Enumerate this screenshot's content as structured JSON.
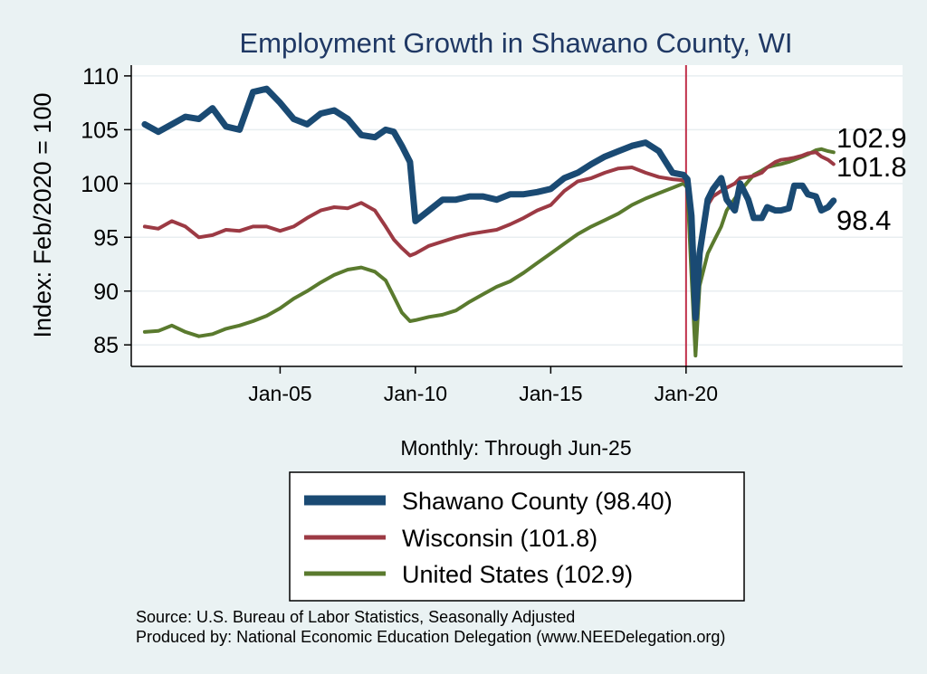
{
  "chart_data": {
    "type": "line",
    "title": "Employment Growth in Shawano  County, WI",
    "ylabel": "Index: Feb/2020 = 100",
    "xlabel": "Monthly: Through Jun-25",
    "ylim": [
      83,
      111
    ],
    "xlim": [
      1999.5,
      2028
    ],
    "yticks": [
      85,
      90,
      95,
      100,
      105,
      110
    ],
    "xticks": [
      {
        "value": 2005,
        "label": "Jan-05"
      },
      {
        "value": 2010,
        "label": "Jan-10"
      },
      {
        "value": 2015,
        "label": "Jan-15"
      },
      {
        "value": 2020,
        "label": "Jan-20"
      }
    ],
    "reference_line": {
      "x": 2020.0,
      "color": "#c0304a"
    },
    "series": [
      {
        "name": "Shawano County",
        "legend": "Shawano  County (98.40)",
        "color": "#1a4a73",
        "width": 7,
        "end_label": "98.4",
        "x": [
          2000.0,
          2000.5,
          2001.0,
          2001.5,
          2002.0,
          2002.5,
          2003.0,
          2003.5,
          2004.0,
          2004.5,
          2005.0,
          2005.5,
          2006.0,
          2006.5,
          2007.0,
          2007.5,
          2008.0,
          2008.5,
          2008.9,
          2009.2,
          2009.5,
          2009.8,
          2010.0,
          2010.5,
          2011.0,
          2011.5,
          2012.0,
          2012.5,
          2013.0,
          2013.5,
          2014.0,
          2014.5,
          2015.0,
          2015.5,
          2016.0,
          2016.5,
          2017.0,
          2017.5,
          2018.0,
          2018.5,
          2019.0,
          2019.5,
          2019.9,
          2020.05,
          2020.2,
          2020.35,
          2020.5,
          2020.8,
          2021.0,
          2021.3,
          2021.5,
          2021.8,
          2022.0,
          2022.3,
          2022.5,
          2022.8,
          2023.0,
          2023.3,
          2023.5,
          2023.8,
          2024.0,
          2024.3,
          2024.5,
          2024.8,
          2025.0,
          2025.25,
          2025.45
        ],
        "values": [
          105.5,
          104.8,
          105.5,
          106.2,
          106.0,
          107.0,
          105.3,
          105.0,
          108.5,
          108.8,
          107.5,
          106.0,
          105.5,
          106.5,
          106.8,
          106.0,
          104.5,
          104.3,
          105.0,
          104.8,
          103.5,
          102.0,
          96.5,
          97.5,
          98.5,
          98.5,
          98.8,
          98.8,
          98.5,
          99.0,
          99.0,
          99.2,
          99.5,
          100.5,
          101.0,
          101.8,
          102.5,
          103.0,
          103.5,
          103.8,
          103.0,
          101.0,
          100.8,
          100.4,
          97.0,
          87.5,
          93.5,
          98.5,
          99.5,
          100.5,
          98.5,
          97.5,
          100.0,
          98.5,
          96.8,
          96.8,
          97.8,
          97.5,
          97.5,
          97.7,
          99.8,
          99.8,
          99.0,
          98.8,
          97.5,
          97.8,
          98.4
        ]
      },
      {
        "name": "Wisconsin",
        "legend": "Wisconsin (101.8)",
        "color": "#9c3a44",
        "width": 4,
        "end_label": "101.8",
        "x": [
          2000.0,
          2000.5,
          2001.0,
          2001.5,
          2002.0,
          2002.5,
          2003.0,
          2003.5,
          2004.0,
          2004.5,
          2005.0,
          2005.5,
          2006.0,
          2006.5,
          2007.0,
          2007.5,
          2008.0,
          2008.5,
          2008.9,
          2009.2,
          2009.5,
          2009.8,
          2010.0,
          2010.5,
          2011.0,
          2011.5,
          2012.0,
          2012.5,
          2013.0,
          2013.5,
          2014.0,
          2014.5,
          2015.0,
          2015.5,
          2016.0,
          2016.5,
          2017.0,
          2017.5,
          2018.0,
          2018.5,
          2019.0,
          2019.5,
          2019.9,
          2020.05,
          2020.2,
          2020.35,
          2020.5,
          2020.8,
          2021.0,
          2021.3,
          2021.5,
          2021.8,
          2022.0,
          2022.3,
          2022.5,
          2022.8,
          2023.0,
          2023.3,
          2023.5,
          2023.8,
          2024.0,
          2024.3,
          2024.5,
          2024.8,
          2025.0,
          2025.25,
          2025.45
        ],
        "values": [
          96.0,
          95.8,
          96.5,
          96.0,
          95.0,
          95.2,
          95.7,
          95.6,
          96.0,
          96.0,
          95.6,
          96.0,
          96.8,
          97.5,
          97.8,
          97.7,
          98.2,
          97.5,
          96.0,
          94.8,
          94.0,
          93.3,
          93.5,
          94.2,
          94.6,
          95.0,
          95.3,
          95.5,
          95.7,
          96.2,
          96.8,
          97.5,
          98.0,
          99.3,
          100.2,
          100.5,
          101.0,
          101.4,
          101.5,
          101.0,
          100.6,
          100.4,
          100.3,
          100.0,
          96.0,
          89.0,
          94.0,
          98.0,
          98.8,
          99.3,
          99.6,
          100.0,
          100.5,
          100.6,
          100.7,
          101.0,
          101.5,
          102.0,
          102.2,
          102.3,
          102.4,
          102.6,
          102.8,
          102.9,
          102.5,
          102.2,
          101.8
        ]
      },
      {
        "name": "United States",
        "legend": "United States (102.9)",
        "color": "#5a7a2e",
        "width": 4,
        "end_label": "102.9",
        "x": [
          2000.0,
          2000.5,
          2001.0,
          2001.5,
          2002.0,
          2002.5,
          2003.0,
          2003.5,
          2004.0,
          2004.5,
          2005.0,
          2005.5,
          2006.0,
          2006.5,
          2007.0,
          2007.5,
          2008.0,
          2008.5,
          2008.9,
          2009.2,
          2009.5,
          2009.8,
          2010.0,
          2010.5,
          2011.0,
          2011.5,
          2012.0,
          2012.5,
          2013.0,
          2013.5,
          2014.0,
          2014.5,
          2015.0,
          2015.5,
          2016.0,
          2016.5,
          2017.0,
          2017.5,
          2018.0,
          2018.5,
          2019.0,
          2019.5,
          2019.9,
          2020.05,
          2020.2,
          2020.35,
          2020.5,
          2020.8,
          2021.0,
          2021.3,
          2021.5,
          2021.8,
          2022.0,
          2022.3,
          2022.5,
          2022.8,
          2023.0,
          2023.3,
          2023.5,
          2023.8,
          2024.0,
          2024.3,
          2024.5,
          2024.8,
          2025.0,
          2025.25,
          2025.45
        ],
        "values": [
          86.2,
          86.3,
          86.8,
          86.2,
          85.8,
          86.0,
          86.5,
          86.8,
          87.2,
          87.7,
          88.4,
          89.3,
          90.0,
          90.8,
          91.5,
          92.0,
          92.2,
          91.8,
          91.0,
          89.5,
          88.0,
          87.2,
          87.3,
          87.6,
          87.8,
          88.2,
          89.0,
          89.7,
          90.4,
          90.9,
          91.7,
          92.6,
          93.5,
          94.4,
          95.3,
          96.0,
          96.6,
          97.2,
          98.0,
          98.6,
          99.1,
          99.6,
          100.0,
          99.6,
          91.5,
          84.0,
          90.5,
          93.5,
          94.5,
          96.0,
          97.5,
          98.6,
          99.3,
          100.2,
          100.8,
          101.2,
          101.5,
          101.7,
          101.8,
          102.0,
          102.2,
          102.5,
          102.7,
          103.1,
          103.2,
          103.0,
          102.9
        ]
      }
    ],
    "legend_placement": "bottom-center"
  },
  "footer": {
    "source": "Source: U.S. Bureau of Labor Statistics, Seasonally Adjusted",
    "produced": "Produced by: National Economic Education Delegation (www.NEEDelegation.org)"
  },
  "colors": {
    "background": "#eaf2f3",
    "plot_background": "#ffffff",
    "title": "#1f3864"
  }
}
